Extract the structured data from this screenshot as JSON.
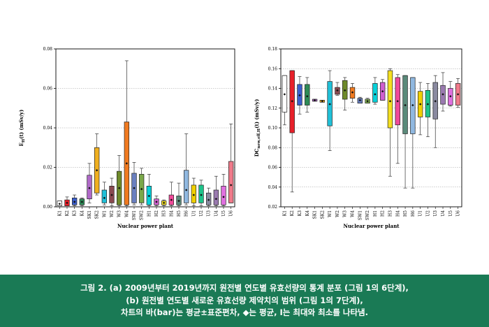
{
  "chart_data": [
    {
      "type": "box",
      "ylabel_main": "E",
      "ylabel_sub": "H",
      "ylabel_rest": "(t) (mSv/y)",
      "xlabel": "Nuclear power plant",
      "ylim": [
        0,
        0.08
      ],
      "yticks": [
        "0.00",
        "0.02",
        "0.04",
        "0.06",
        "0.08"
      ],
      "grid": "horizontal-dotted",
      "categories": [
        "K1",
        "K2",
        "K3",
        "K4",
        "SK1",
        "SK2",
        "W1",
        "W2",
        "W3",
        "W4",
        "SW1",
        "SW2",
        "H1",
        "H2",
        "H3",
        "H4",
        "H5",
        "H6",
        "U1",
        "U2",
        "U3",
        "U4",
        "U5",
        "U6"
      ],
      "series": [
        {
          "values": [
            {
              "min": 0.0005,
              "q1": 0.0005,
              "q3": 0.003,
              "max": 0.003,
              "mean": 0.0015,
              "color": "#ffffff"
            },
            {
              "min": 0.0005,
              "q1": 0.0005,
              "q3": 0.0035,
              "max": 0.005,
              "mean": 0.002,
              "color": "#e8202a"
            },
            {
              "min": 0.0005,
              "q1": 0.001,
              "q3": 0.0045,
              "max": 0.006,
              "mean": 0.0025,
              "color": "#3a5fcd"
            },
            {
              "min": 0.0005,
              "q1": 0.001,
              "q3": 0.004,
              "max": 0.0045,
              "mean": 0.0025,
              "color": "#2e8b57"
            },
            {
              "min": 0.002,
              "q1": 0.004,
              "q3": 0.016,
              "max": 0.022,
              "mean": 0.0095,
              "color": "#b06ac9"
            },
            {
              "min": 0.006,
              "q1": 0.007,
              "q3": 0.03,
              "max": 0.037,
              "mean": 0.0185,
              "color": "#f0b020"
            },
            {
              "min": 0.001,
              "q1": 0.002,
              "q3": 0.0085,
              "max": 0.0125,
              "mean": 0.0045,
              "color": "#20c0d8"
            },
            {
              "min": 0.0005,
              "q1": 0.002,
              "q3": 0.0105,
              "max": 0.0145,
              "mean": 0.006,
              "color": "#8a4a50"
            },
            {
              "min": 0.0005,
              "q1": 0.001,
              "q3": 0.018,
              "max": 0.026,
              "mean": 0.0095,
              "color": "#6e8a2a"
            },
            {
              "min": 0.0005,
              "q1": 0.001,
              "q3": 0.043,
              "max": 0.074,
              "mean": 0.022,
              "color": "#f07a20"
            },
            {
              "min": 0.001,
              "q1": 0.002,
              "q3": 0.017,
              "max": 0.0225,
              "mean": 0.0095,
              "color": "#6a80c0"
            },
            {
              "min": 0.001,
              "q1": 0.002,
              "q3": 0.0165,
              "max": 0.0195,
              "mean": 0.009,
              "color": "#7aa84a"
            },
            {
              "min": 0.0005,
              "q1": 0.001,
              "q3": 0.0105,
              "max": 0.0165,
              "mean": 0.0055,
              "color": "#08d0d8"
            },
            {
              "min": 0.0005,
              "q1": 0.001,
              "q3": 0.004,
              "max": 0.0055,
              "mean": 0.0025,
              "color": "#d060d0"
            },
            {
              "min": 0.0005,
              "q1": 0.001,
              "q3": 0.003,
              "max": 0.0035,
              "mean": 0.002,
              "color": "#f5e020"
            },
            {
              "min": 0.0005,
              "q1": 0.001,
              "q3": 0.006,
              "max": 0.0125,
              "mean": 0.0035,
              "color": "#f04a9a"
            },
            {
              "min": 0.0005,
              "q1": 0.001,
              "q3": 0.0055,
              "max": 0.012,
              "mean": 0.003,
              "color": "#5a8a7a"
            },
            {
              "min": 0.001,
              "q1": 0.002,
              "q3": 0.0185,
              "max": 0.037,
              "mean": 0.0085,
              "color": "#90b8e0"
            },
            {
              "min": 0.0005,
              "q1": 0.002,
              "q3": 0.011,
              "max": 0.0145,
              "mean": 0.006,
              "color": "#f0d000"
            },
            {
              "min": 0.0005,
              "q1": 0.002,
              "q3": 0.011,
              "max": 0.0135,
              "mean": 0.006,
              "color": "#1ec48a"
            },
            {
              "min": 0.0005,
              "q1": 0.001,
              "q3": 0.007,
              "max": 0.0095,
              "mean": 0.0035,
              "color": "#8a8aa0"
            },
            {
              "min": 0.0005,
              "q1": 0.001,
              "q3": 0.0085,
              "max": 0.0155,
              "mean": 0.004,
              "color": "#9a7ab0"
            },
            {
              "min": 0.0005,
              "q1": 0.001,
              "q3": 0.0105,
              "max": 0.0165,
              "mean": 0.005,
              "color": "#e070e0"
            },
            {
              "min": 0.002,
              "q1": 0.002,
              "q3": 0.023,
              "max": 0.042,
              "mean": 0.011,
              "color": "#f07a8a"
            }
          ]
        }
      ]
    },
    {
      "type": "box",
      "ylabel_main": "DC",
      "ylabel_sub": "new,eff,H",
      "ylabel_rest": "(t) (mSv/y)",
      "xlabel": "Nuclear power plant",
      "ylim": [
        0.02,
        0.18
      ],
      "yticks": [
        "0.02",
        "0.04",
        "0.06",
        "0.08",
        "0.10",
        "0.12",
        "0.14",
        "0.16",
        "0.18"
      ],
      "grid": "horizontal-dotted",
      "categories": [
        "K1",
        "K2",
        "K3",
        "K4",
        "SK1",
        "SK2",
        "W1",
        "W2",
        "W3",
        "W4",
        "SW1",
        "SW2",
        "H1",
        "H2",
        "H3",
        "H4",
        "H5",
        "H6",
        "U1",
        "U2",
        "U3",
        "U4",
        "U5",
        "U6"
      ],
      "series": [
        {
          "values": [
            {
              "min": 0.103,
              "q1": 0.116,
              "q3": 0.153,
              "max": 0.153,
              "mean": 0.134,
              "color": "#ffffff"
            },
            {
              "min": 0.035,
              "q1": 0.095,
              "q3": 0.158,
              "max": 0.158,
              "mean": 0.127,
              "color": "#e8202a"
            },
            {
              "min": 0.114,
              "q1": 0.123,
              "q3": 0.144,
              "max": 0.152,
              "mean": 0.133,
              "color": "#3a5fcd"
            },
            {
              "min": 0.116,
              "q1": 0.123,
              "q3": 0.144,
              "max": 0.151,
              "mean": 0.132,
              "color": "#2e8b57"
            },
            {
              "min": 0.127,
              "q1": 0.127,
              "q3": 0.129,
              "max": 0.129,
              "mean": 0.128,
              "color": "#b06ac9"
            },
            {
              "min": 0.126,
              "q1": 0.126,
              "q3": 0.128,
              "max": 0.128,
              "mean": 0.127,
              "color": "#f0b020"
            },
            {
              "min": 0.077,
              "q1": 0.102,
              "q3": 0.147,
              "max": 0.158,
              "mean": 0.124,
              "color": "#20c0d8"
            },
            {
              "min": 0.133,
              "q1": 0.134,
              "q3": 0.141,
              "max": 0.146,
              "mean": 0.138,
              "color": "#8a4a50"
            },
            {
              "min": 0.118,
              "q1": 0.129,
              "q3": 0.148,
              "max": 0.151,
              "mean": 0.138,
              "color": "#6e8a2a"
            },
            {
              "min": 0.126,
              "q1": 0.13,
              "q3": 0.141,
              "max": 0.145,
              "mean": 0.136,
              "color": "#f07a20"
            },
            {
              "min": 0.125,
              "q1": 0.125,
              "q3": 0.13,
              "max": 0.131,
              "mean": 0.128,
              "color": "#6a80c0"
            },
            {
              "min": 0.125,
              "q1": 0.125,
              "q3": 0.129,
              "max": 0.13,
              "mean": 0.127,
              "color": "#7aa84a"
            },
            {
              "min": 0.124,
              "q1": 0.126,
              "q3": 0.145,
              "max": 0.151,
              "mean": 0.134,
              "color": "#08d0d8"
            },
            {
              "min": 0.128,
              "q1": 0.128,
              "q3": 0.146,
              "max": 0.149,
              "mean": 0.137,
              "color": "#d060d0"
            },
            {
              "min": 0.051,
              "q1": 0.1,
              "q3": 0.158,
              "max": 0.16,
              "mean": 0.127,
              "color": "#f5e020"
            },
            {
              "min": 0.064,
              "q1": 0.103,
              "q3": 0.151,
              "max": 0.154,
              "mean": 0.127,
              "color": "#f04a9a"
            },
            {
              "min": 0.039,
              "q1": 0.094,
              "q3": 0.153,
              "max": 0.153,
              "mean": 0.123,
              "color": "#5a8a7a"
            },
            {
              "min": 0.039,
              "q1": 0.094,
              "q3": 0.151,
              "max": 0.151,
              "mean": 0.123,
              "color": "#90b8e0"
            },
            {
              "min": 0.093,
              "q1": 0.111,
              "q3": 0.137,
              "max": 0.146,
              "mean": 0.124,
              "color": "#f0d000"
            },
            {
              "min": 0.091,
              "q1": 0.111,
              "q3": 0.138,
              "max": 0.145,
              "mean": 0.124,
              "color": "#1ec48a"
            },
            {
              "min": 0.08,
              "q1": 0.109,
              "q3": 0.146,
              "max": 0.153,
              "mean": 0.127,
              "color": "#8a8aa0"
            },
            {
              "min": 0.117,
              "q1": 0.124,
              "q3": 0.143,
              "max": 0.156,
              "mean": 0.134,
              "color": "#9a7ab0"
            },
            {
              "min": 0.122,
              "q1": 0.123,
              "q3": 0.14,
              "max": 0.147,
              "mean": 0.132,
              "color": "#e070e0"
            },
            {
              "min": 0.121,
              "q1": 0.123,
              "q3": 0.145,
              "max": 0.15,
              "mean": 0.134,
              "color": "#f07a8a"
            }
          ]
        }
      ]
    }
  ],
  "caption": {
    "line1": "그림 2. (a) 2009년부터 2019년까지 원전별 연도별 유효선량의 통계 분포 (그림 1의 6단계),",
    "line2": "(b) 원전별 연도별 새로운 유효선량 제약치의 범위 (그림 1의 7단계),",
    "line3": "차트의 바(bar)는 평균±표준편차, ◆는 평균, I는 최대와 최소를 나타냄."
  },
  "colors": {
    "caption_background": "#1a7a55",
    "caption_text": "#ffffff",
    "grid": "#9a9a9a"
  }
}
